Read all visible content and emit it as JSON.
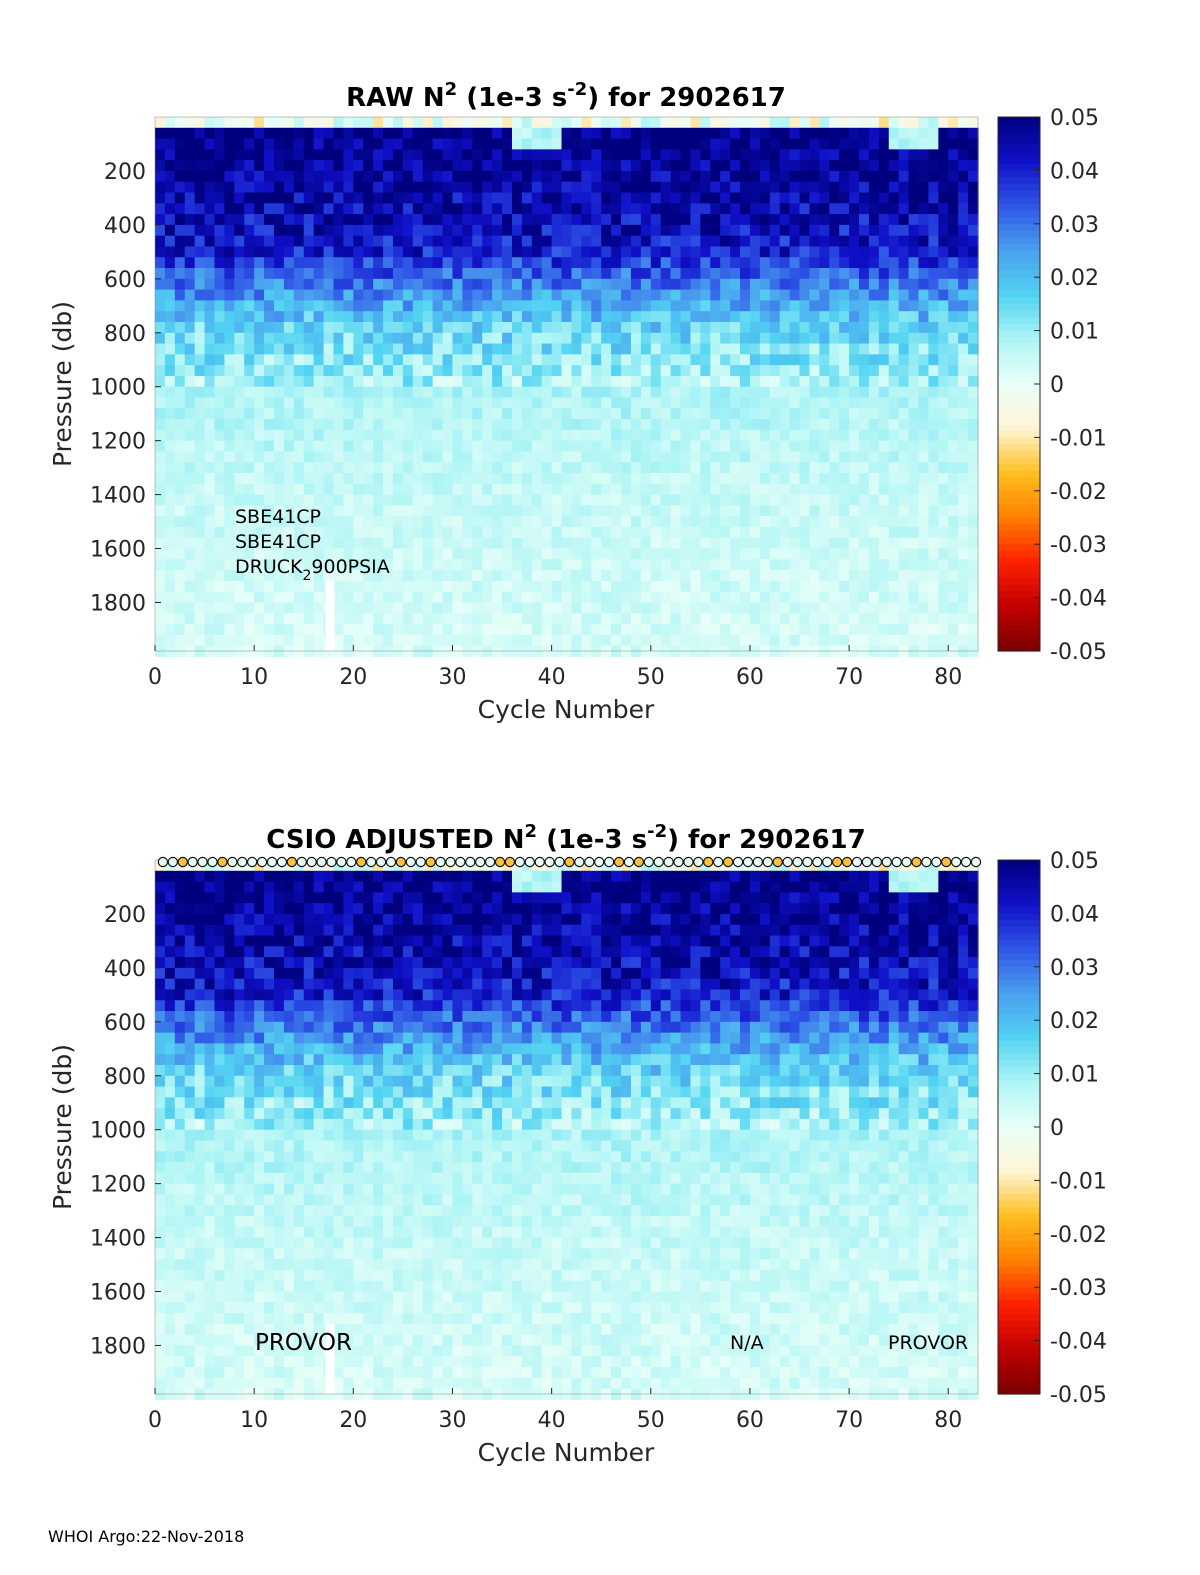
{
  "footer": "WHOI Argo:22-Nov-2018",
  "colors": {
    "colormap": [
      "#7a0000",
      "#c00000",
      "#ff2000",
      "#ff8000",
      "#ffbf20",
      "#fff5d6",
      "#e9fff8",
      "#aff5f5",
      "#52d3f2",
      "#4aa0ee",
      "#2f56e6",
      "#1010c8",
      "#00007e"
    ]
  },
  "chart_data": [
    {
      "type": "heatmap",
      "title": {
        "main": "RAW N",
        "sup1": "2",
        "mid": " (1e-3 s",
        "sup2": "-2",
        "end": ") for 2902617"
      },
      "xlabel": "Cycle Number",
      "ylabel": "Pressure (db)",
      "xlim": [
        0,
        83
      ],
      "ylim": [
        0,
        1980
      ],
      "y_reversed": true,
      "xticks": [
        0,
        10,
        20,
        30,
        40,
        50,
        60,
        70,
        80
      ],
      "yticks": [
        200,
        400,
        600,
        800,
        1000,
        1200,
        1400,
        1600,
        1800
      ],
      "colorbar": {
        "ticks": [
          "0.05",
          "0.04",
          "0.03",
          "0.02",
          "0.01",
          "0",
          "-0.01",
          "-0.02",
          "-0.03",
          "-0.04",
          "-0.05"
        ],
        "range": [
          -0.05,
          0.05
        ]
      },
      "annotations": [
        "SBE41CP",
        "SBE41CP",
        "DRUCK",
        "2",
        "900PSIA"
      ],
      "data_gap_cycle": 17,
      "profile": [
        {
          "pressure": 0,
          "value": -0.005
        },
        {
          "pressure": 50,
          "value": 0.05
        },
        {
          "pressure": 300,
          "value": 0.045
        },
        {
          "pressure": 500,
          "value": 0.04
        },
        {
          "pressure": 600,
          "value": 0.03
        },
        {
          "pressure": 800,
          "value": 0.015
        },
        {
          "pressure": 1000,
          "value": 0.008
        },
        {
          "pressure": 1400,
          "value": 0.005
        },
        {
          "pressure": 1980,
          "value": 0.003
        }
      ]
    },
    {
      "type": "heatmap",
      "title": {
        "main": "CSIO  ADJUSTED N",
        "sup1": "2",
        "mid": " (1e-3 s",
        "sup2": "-2",
        "end": ") for 2902617"
      },
      "xlabel": "Cycle Number",
      "ylabel": "Pressure (db)",
      "xlim": [
        0,
        83
      ],
      "ylim": [
        0,
        1980
      ],
      "y_reversed": true,
      "xticks": [
        0,
        10,
        20,
        30,
        40,
        50,
        60,
        70,
        80
      ],
      "yticks": [
        200,
        400,
        600,
        800,
        1000,
        1200,
        1400,
        1600,
        1800
      ],
      "colorbar": {
        "ticks": [
          "0.05",
          "0.04",
          "0.03",
          "0.02",
          "0.01",
          "0",
          "-0.01",
          "-0.02",
          "-0.03",
          "-0.04",
          "-0.05"
        ],
        "range": [
          -0.05,
          0.05
        ]
      },
      "annotations": [
        "PROVOR",
        "N/A",
        "PROVOR"
      ],
      "surface_markers": "open circles along the top for each cycle",
      "data_gap_cycle": 17,
      "profile": [
        {
          "pressure": 0,
          "value": -0.005
        },
        {
          "pressure": 50,
          "value": 0.05
        },
        {
          "pressure": 300,
          "value": 0.045
        },
        {
          "pressure": 500,
          "value": 0.04
        },
        {
          "pressure": 600,
          "value": 0.03
        },
        {
          "pressure": 800,
          "value": 0.015
        },
        {
          "pressure": 1000,
          "value": 0.008
        },
        {
          "pressure": 1400,
          "value": 0.005
        },
        {
          "pressure": 1980,
          "value": 0.003
        }
      ]
    }
  ]
}
